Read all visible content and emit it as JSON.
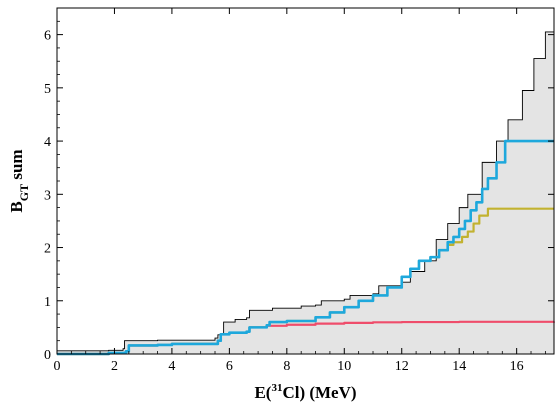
{
  "chart_data": {
    "type": "line",
    "xlabel": "E(31Cl) (MeV)",
    "xlabel_parts": {
      "prefix": "E(",
      "superscript": "31",
      "suffix": "Cl) (MeV)"
    },
    "ylabel": "BGT sum",
    "ylabel_parts": {
      "main": "B",
      "subscript": "GT",
      "suffix": " sum"
    },
    "xlim": [
      0,
      17.3
    ],
    "ylim": [
      0,
      6.5
    ],
    "x_ticks": [
      0,
      2,
      4,
      6,
      8,
      10,
      12,
      14,
      16
    ],
    "y_ticks": [
      0,
      1,
      2,
      3,
      4,
      5,
      6
    ],
    "grid": false,
    "envelope": {
      "fill": "#e4e4e4",
      "upper": [
        [
          0,
          0.06
        ],
        [
          1.8,
          0.07
        ],
        [
          2.3,
          0.1
        ],
        [
          2.35,
          0.25
        ],
        [
          3.5,
          0.26
        ],
        [
          5.5,
          0.3
        ],
        [
          5.6,
          0.36
        ],
        [
          5.8,
          0.6
        ],
        [
          6.2,
          0.65
        ],
        [
          6.6,
          0.68
        ],
        [
          6.7,
          0.82
        ],
        [
          7.5,
          0.86
        ],
        [
          8.5,
          0.9
        ],
        [
          9.0,
          0.92
        ],
        [
          9.2,
          1.0
        ],
        [
          10.0,
          1.03
        ],
        [
          10.2,
          1.1
        ],
        [
          11.0,
          1.13
        ],
        [
          11.2,
          1.28
        ],
        [
          12.0,
          1.35
        ],
        [
          12.3,
          1.55
        ],
        [
          12.8,
          1.75
        ],
        [
          13.2,
          2.15
        ],
        [
          13.6,
          2.45
        ],
        [
          14.0,
          2.75
        ],
        [
          14.3,
          3.0
        ],
        [
          14.8,
          3.6
        ],
        [
          15.3,
          4.0
        ],
        [
          15.7,
          4.4
        ],
        [
          16.2,
          4.95
        ],
        [
          16.6,
          5.55
        ],
        [
          17.0,
          6.05
        ],
        [
          17.3,
          6.35
        ]
      ],
      "lower": [
        [
          0,
          0.0
        ],
        [
          17.3,
          0.0
        ]
      ]
    },
    "series": [
      {
        "color": "#ef4d6b",
        "points": [
          [
            0,
            0.0
          ],
          [
            1.8,
            0.02
          ],
          [
            2.4,
            0.05
          ],
          [
            2.5,
            0.16
          ],
          [
            3.5,
            0.17
          ],
          [
            4.0,
            0.19
          ],
          [
            5.6,
            0.25
          ],
          [
            5.7,
            0.37
          ],
          [
            6.0,
            0.4
          ],
          [
            6.6,
            0.42
          ],
          [
            6.7,
            0.5
          ],
          [
            7.3,
            0.53
          ],
          [
            8.0,
            0.55
          ],
          [
            9.0,
            0.57
          ],
          [
            10.0,
            0.585
          ],
          [
            11.0,
            0.595
          ],
          [
            12.0,
            0.6
          ],
          [
            14.0,
            0.605
          ],
          [
            17.3,
            0.61
          ]
        ]
      },
      {
        "color": "#c2b230",
        "points": [
          [
            0,
            0.0
          ],
          [
            1.8,
            0.02
          ],
          [
            2.4,
            0.05
          ],
          [
            2.5,
            0.16
          ],
          [
            3.5,
            0.17
          ],
          [
            4.0,
            0.19
          ],
          [
            5.6,
            0.25
          ],
          [
            5.7,
            0.37
          ],
          [
            6.0,
            0.4
          ],
          [
            6.6,
            0.42
          ],
          [
            6.7,
            0.5
          ],
          [
            7.3,
            0.54
          ],
          [
            7.4,
            0.6
          ],
          [
            8.0,
            0.62
          ],
          [
            9.0,
            0.69
          ],
          [
            9.5,
            0.78
          ],
          [
            10.0,
            0.88
          ],
          [
            10.5,
            1.0
          ],
          [
            11.0,
            1.1
          ],
          [
            11.5,
            1.25
          ],
          [
            12.0,
            1.45
          ],
          [
            12.3,
            1.6
          ],
          [
            12.6,
            1.75
          ],
          [
            13.0,
            1.82
          ],
          [
            13.3,
            1.95
          ],
          [
            13.6,
            2.05
          ],
          [
            13.8,
            2.1
          ],
          [
            14.1,
            2.2
          ],
          [
            14.3,
            2.3
          ],
          [
            14.5,
            2.45
          ],
          [
            14.7,
            2.6
          ],
          [
            15.0,
            2.73
          ],
          [
            17.3,
            2.73
          ]
        ]
      },
      {
        "color": "#1ea8dc",
        "points": [
          [
            0,
            0.0
          ],
          [
            1.8,
            0.02
          ],
          [
            2.4,
            0.05
          ],
          [
            2.5,
            0.16
          ],
          [
            3.5,
            0.17
          ],
          [
            4.0,
            0.19
          ],
          [
            5.6,
            0.25
          ],
          [
            5.7,
            0.37
          ],
          [
            6.0,
            0.4
          ],
          [
            6.6,
            0.42
          ],
          [
            6.7,
            0.5
          ],
          [
            7.3,
            0.54
          ],
          [
            7.4,
            0.6
          ],
          [
            8.0,
            0.62
          ],
          [
            9.0,
            0.69
          ],
          [
            9.5,
            0.78
          ],
          [
            10.0,
            0.88
          ],
          [
            10.5,
            1.0
          ],
          [
            11.0,
            1.1
          ],
          [
            11.5,
            1.25
          ],
          [
            12.0,
            1.45
          ],
          [
            12.3,
            1.6
          ],
          [
            12.6,
            1.75
          ],
          [
            13.0,
            1.82
          ],
          [
            13.3,
            1.95
          ],
          [
            13.6,
            2.1
          ],
          [
            13.8,
            2.2
          ],
          [
            14.0,
            2.35
          ],
          [
            14.2,
            2.5
          ],
          [
            14.4,
            2.7
          ],
          [
            14.6,
            2.85
          ],
          [
            14.8,
            3.1
          ],
          [
            15.0,
            3.3
          ],
          [
            15.3,
            3.6
          ],
          [
            15.6,
            4.0
          ],
          [
            17.3,
            4.0
          ]
        ]
      }
    ]
  }
}
